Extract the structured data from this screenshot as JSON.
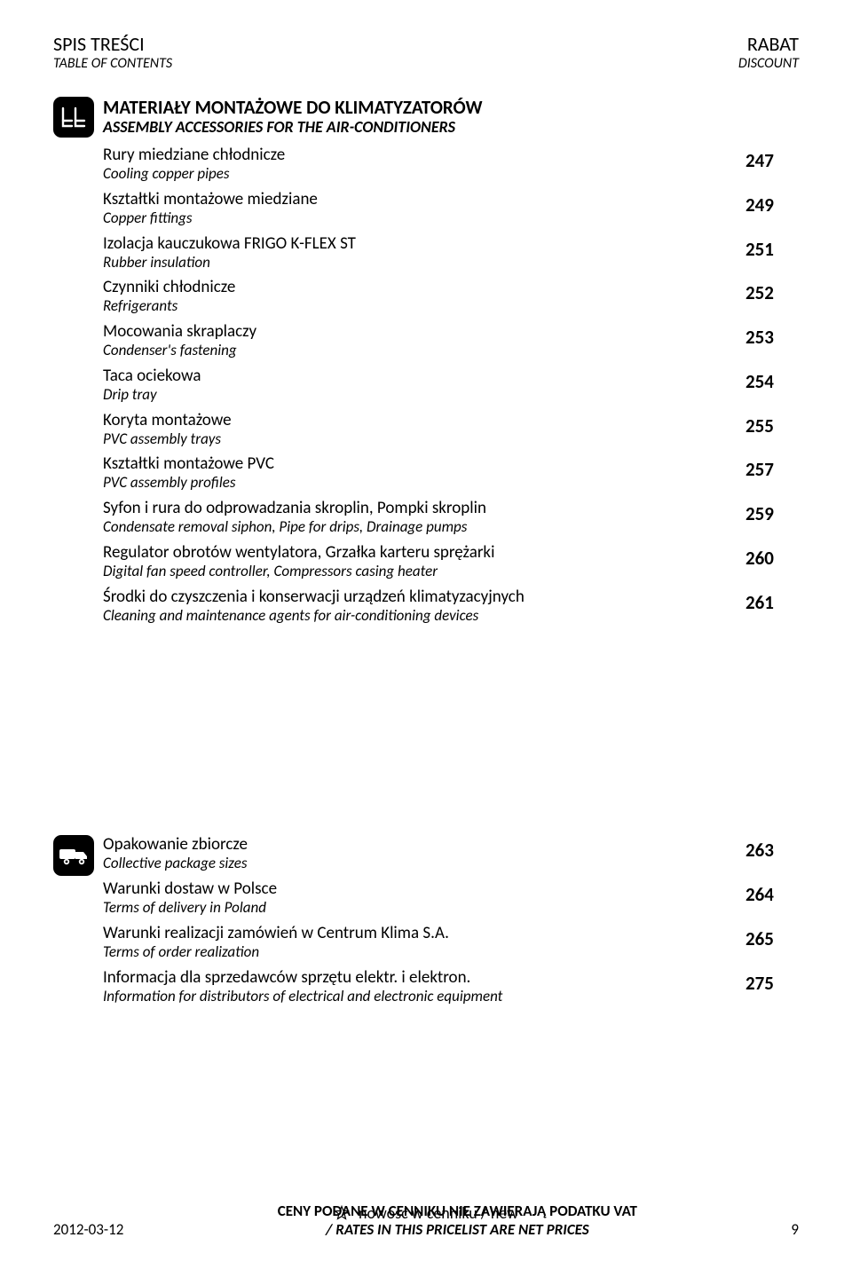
{
  "header": {
    "left_main": "SPIS TREŚCI",
    "left_sub": "TABLE OF CONTENTS",
    "right_main": "RABAT",
    "right_sub": "DISCOUNT"
  },
  "section1": {
    "title": "MATERIAŁY MONTAŻOWE DO KLIMATYZATORÓW",
    "subtitle": "ASSEMBLY ACCESSORIES FOR THE AIR-CONDITIONERS",
    "items": [
      {
        "pl": "Rury miedziane chłodnicze",
        "en": "Cooling copper pipes",
        "page": "247"
      },
      {
        "pl": "Kształtki montażowe miedziane",
        "en": "Copper fittings",
        "page": "249"
      },
      {
        "pl": "Izolacja kauczukowa FRIGO K-FLEX ST",
        "en": "Rubber insulation",
        "page": "251"
      },
      {
        "pl": "Czynniki chłodnicze",
        "en": "Refrigerants",
        "page": "252"
      },
      {
        "pl": "Mocowania skraplaczy",
        "en": "Condenser's fastening",
        "page": "253"
      },
      {
        "pl": "Taca ociekowa",
        "en": "Drip tray",
        "page": "254"
      },
      {
        "pl": "Koryta montażowe",
        "en": "PVC assembly trays",
        "page": "255"
      },
      {
        "pl": "Kształtki montażowe PVC",
        "en": "PVC assembly profiles",
        "page": "257"
      },
      {
        "pl": "Syfon i rura do odprowadzania skroplin, Pompki skroplin",
        "en": "Condensate removal siphon, Pipe for drips, Drainage pumps",
        "page": "259"
      },
      {
        "pl": "Regulator obrotów wentylatora, Grzałka karteru sprężarki",
        "en": "Digital fan speed controller, Compressors casing heater",
        "page": "260"
      },
      {
        "pl": "Środki do czyszczenia i konserwacji urządzeń klimatyzacyjnych",
        "en": "Cleaning and maintenance agents for air-conditioning devices",
        "page": "261"
      }
    ]
  },
  "section2": {
    "items": [
      {
        "pl": "Opakowanie zbiorcze",
        "en": "Collective package sizes",
        "page": "263"
      },
      {
        "pl": "Warunki dostaw w Polsce",
        "en": "Terms of delivery in Poland",
        "page": "264"
      },
      {
        "pl": "Warunki realizacji zamówień w Centrum Klima S.A.",
        "en": "Terms of order realization",
        "page": "265"
      },
      {
        "pl": "Informacja dla sprzedawców sprzętu elektr. i elektron.",
        "en": "Information for distributors of electrical and electronic equipment",
        "page": "275"
      }
    ]
  },
  "footer": {
    "new_label": "nowość w cenniku / new",
    "bold_line1": "CENY PODANE W CENNIKU NIE ZAWIERAJĄ PODATKU VAT",
    "bold_line2": "/ RATES IN THIS PRICELIST ARE NET PRICES",
    "date": "2012-03-12",
    "page_number": "9"
  },
  "colors": {
    "text": "#000000",
    "background": "#ffffff",
    "icon_bg": "#000000",
    "icon_fg": "#ffffff"
  },
  "typography": {
    "font_family": "Calibri",
    "header_main_size_pt": 16,
    "header_sub_size_pt": 12,
    "section_title_size_pt": 15,
    "toc_main_size_pt": 14,
    "toc_sub_size_pt": 12,
    "page_number_size_pt": 15,
    "footer_size_pt": 12
  }
}
